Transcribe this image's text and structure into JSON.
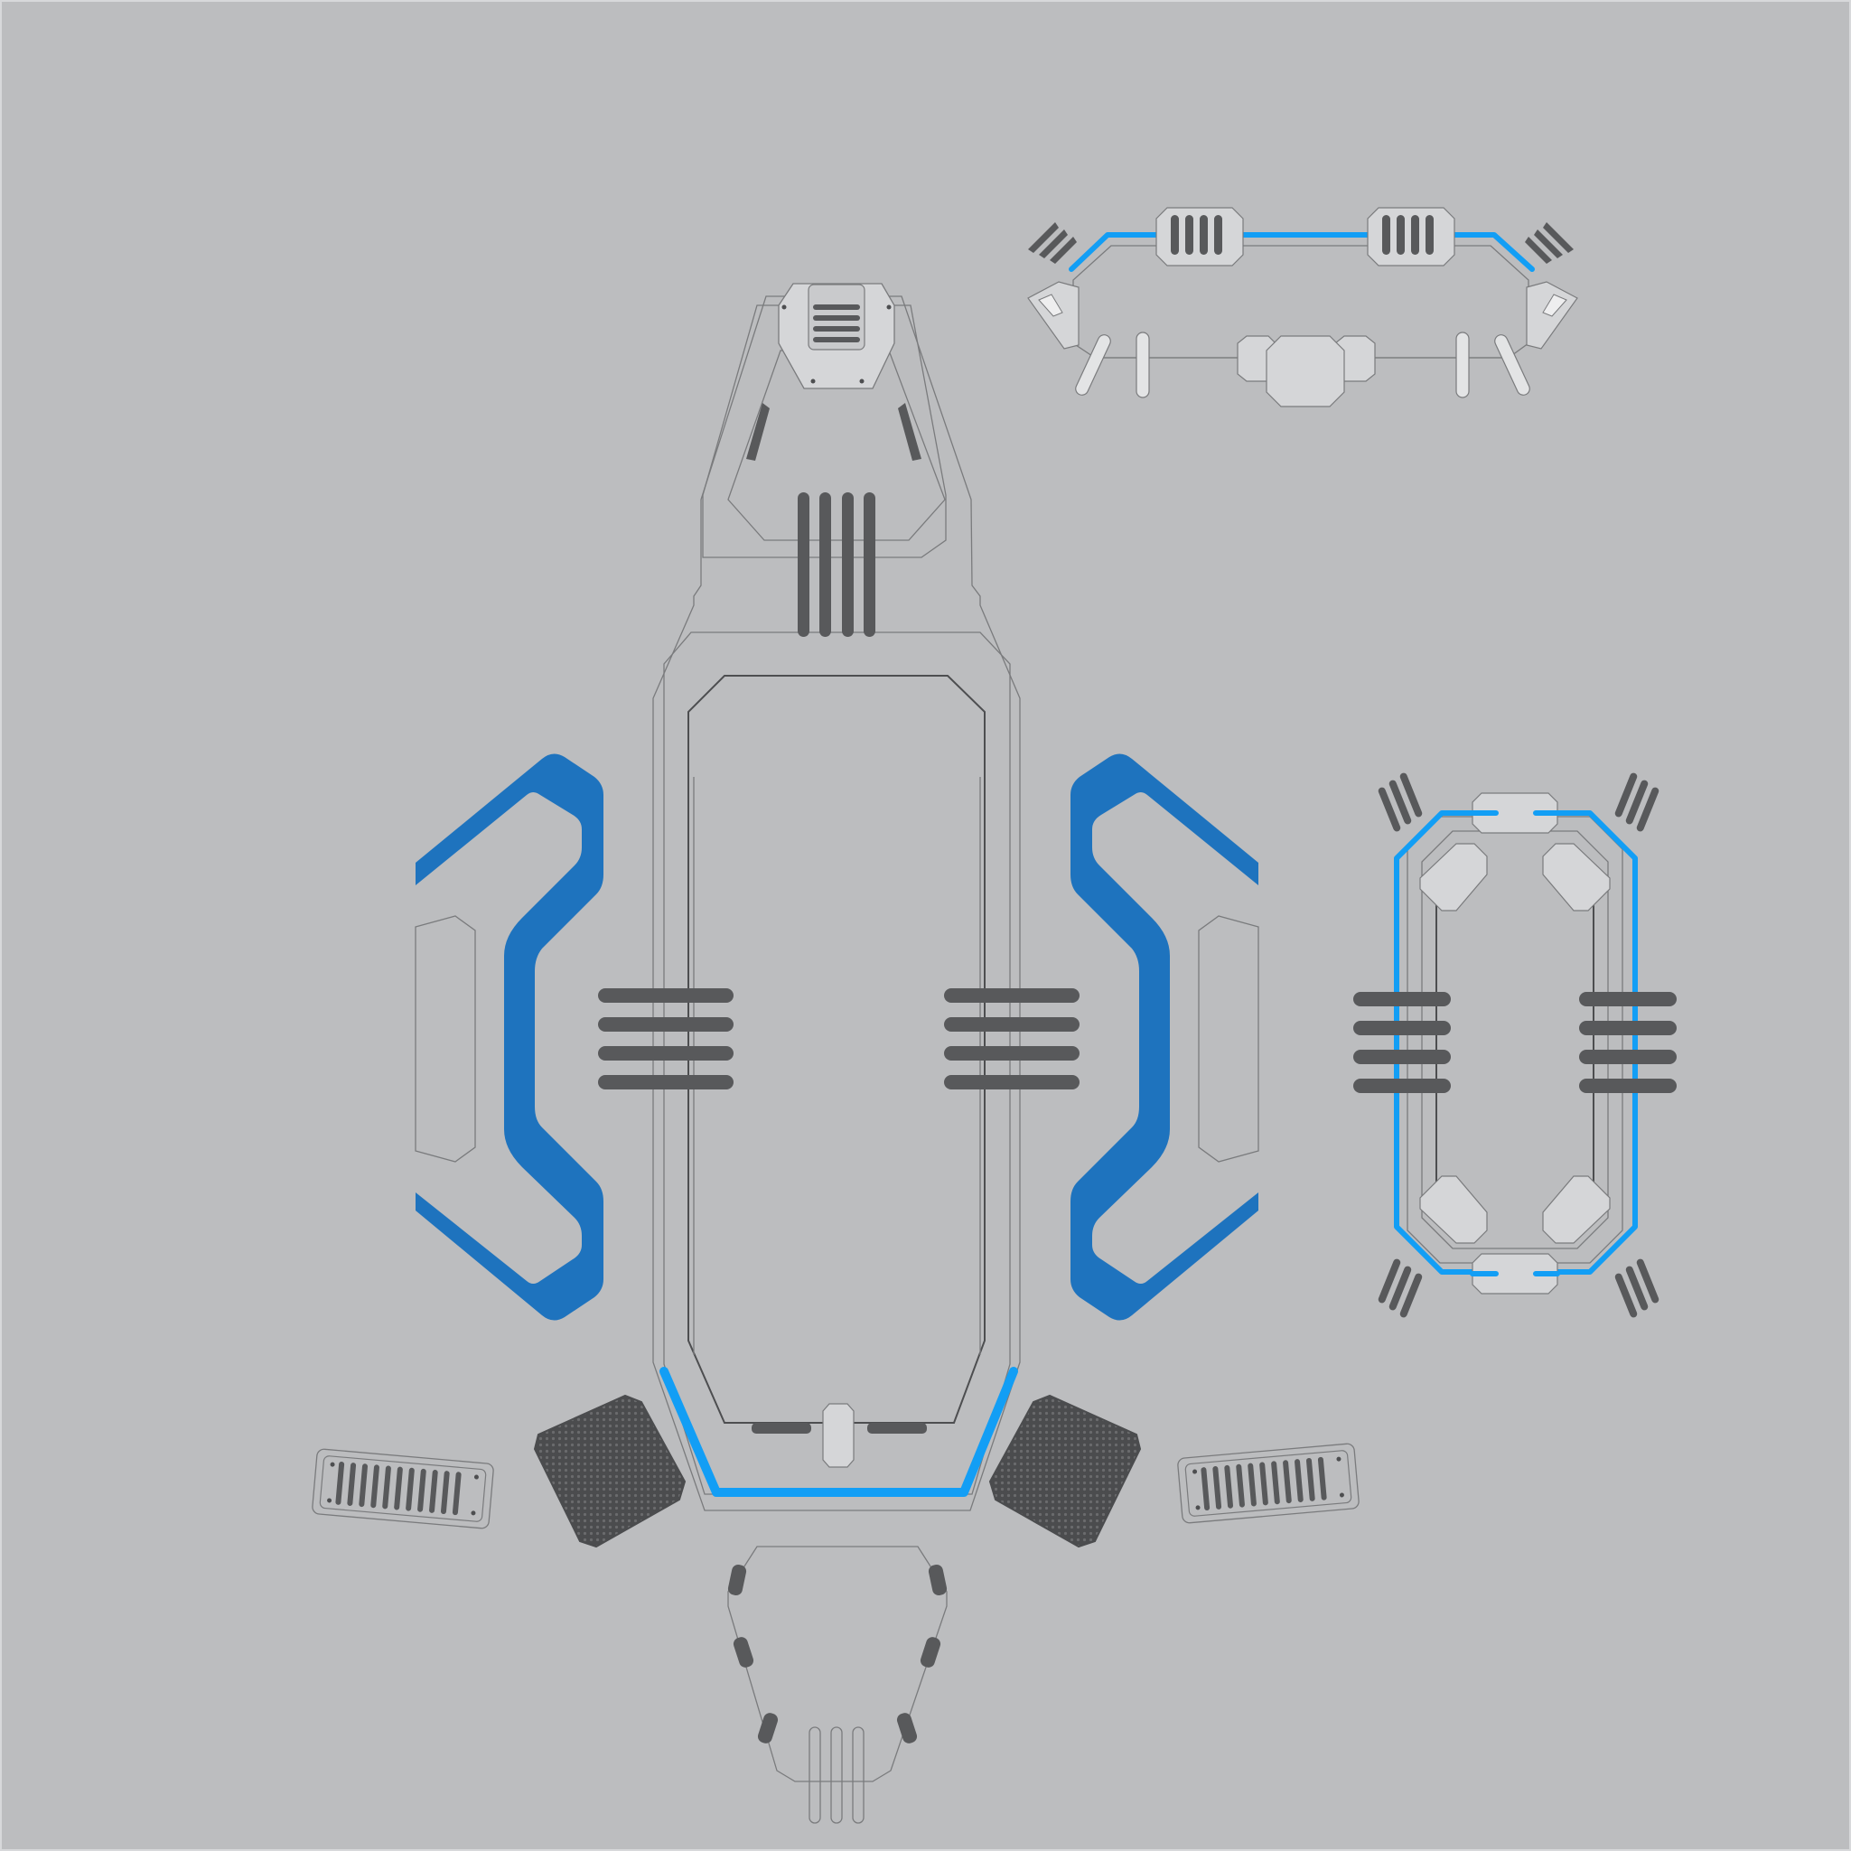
{
  "canvas": {
    "background": "#bcbdbf",
    "border": "#d7d8da"
  },
  "palette": {
    "outline": "#7a7b7d",
    "panel": "#d5d6d8",
    "panel_dark": "#c9cacc",
    "slot": "#58595b",
    "dark_outline": "#4d4e50",
    "blue_bright": "#129ef5",
    "blue_deep": "#1e73be"
  },
  "parts": [
    {
      "id": "main-hull",
      "label": ""
    },
    {
      "id": "side-wing-left",
      "label": ""
    },
    {
      "id": "side-wing-right",
      "label": ""
    },
    {
      "id": "top-bar-module",
      "label": ""
    },
    {
      "id": "ring-module",
      "label": ""
    },
    {
      "id": "vent-plate-left",
      "label": ""
    },
    {
      "id": "vent-plate-right",
      "label": ""
    },
    {
      "id": "mesh-pad-left",
      "label": ""
    },
    {
      "id": "mesh-pad-right",
      "label": ""
    },
    {
      "id": "tail-cage",
      "label": ""
    }
  ]
}
